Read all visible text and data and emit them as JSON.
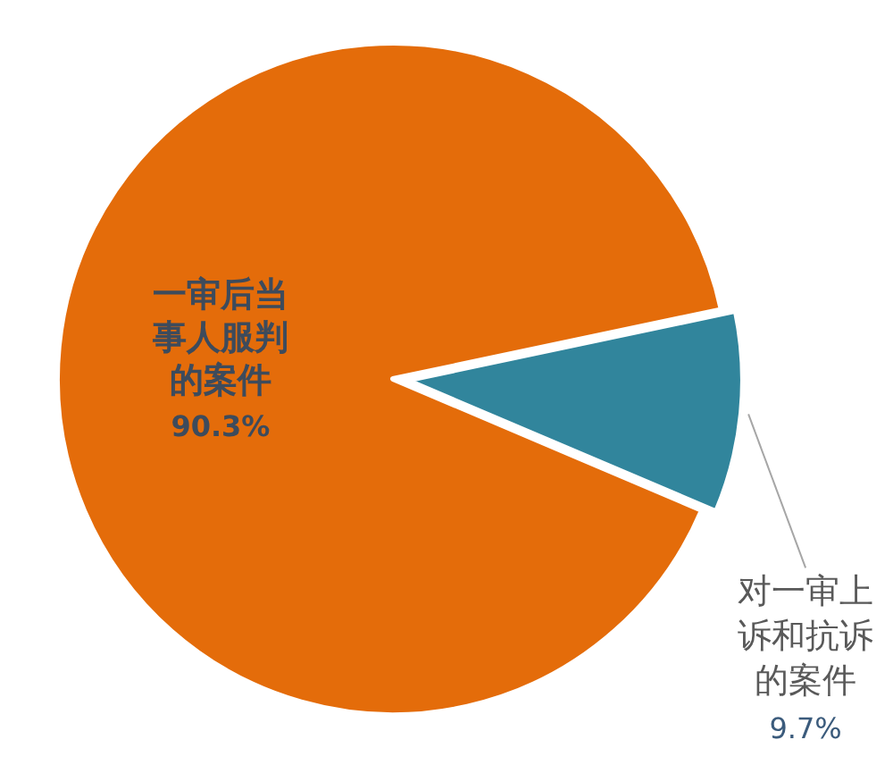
{
  "chart_data": {
    "type": "pie",
    "categories": [
      "一审后当事人服判的案件",
      "对一审上诉和抗诉的案件"
    ],
    "values": [
      90.3,
      9.7
    ],
    "colors": [
      "#e46c0a",
      "#31859c"
    ],
    "value_labels": [
      "90.3%",
      "9.7%"
    ]
  }
}
